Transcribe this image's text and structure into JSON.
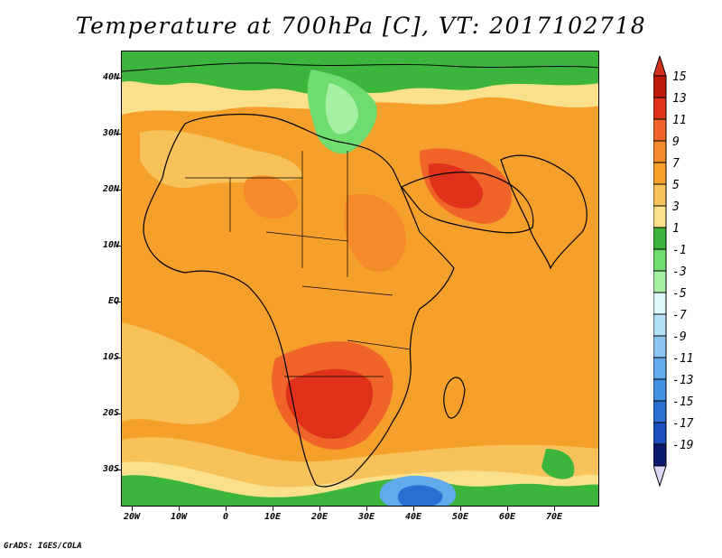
{
  "title": "Temperature at 700hPa [C], VT: 2017102718",
  "credit": "GrADS: IGES/COLA",
  "axes": {
    "lat_labels": [
      "40N",
      "30N",
      "20N",
      "10N",
      "EQ",
      "10S",
      "20S",
      "30S"
    ],
    "lon_labels": [
      "20W",
      "10W",
      "0",
      "10E",
      "20E",
      "30E",
      "40E",
      "50E",
      "60E",
      "70E"
    ],
    "lat_values": [
      40,
      30,
      20,
      10,
      0,
      -10,
      -20,
      -30
    ],
    "lon_values": [
      -20,
      -10,
      0,
      10,
      20,
      30,
      40,
      50,
      60,
      70
    ],
    "lon_range": [
      -22,
      80
    ],
    "lat_range": [
      -36,
      45
    ]
  },
  "colorbar": {
    "labels": [
      "15",
      "13",
      "11",
      "9",
      "7",
      "5",
      "3",
      "1",
      "-1",
      "-3",
      "-5",
      "-7",
      "-9",
      "-11",
      "-13",
      "-15",
      "-17",
      "-19"
    ],
    "colors": [
      "#c01a0a",
      "#e0321a",
      "#f0642a",
      "#f58a2a",
      "#f5a02a",
      "#f7c25a",
      "#fae08a",
      "#3cb53c",
      "#6edc6e",
      "#a6f0a6",
      "#dcf7f7",
      "#b6e0f7",
      "#8cc6f0",
      "#62aaeb",
      "#4290e3",
      "#2a6ed2",
      "#1a4ebe",
      "#0a1a6e"
    ],
    "top_arrow_color": "#d2321a",
    "bottom_arrow_color": "#dcd7f7"
  }
}
